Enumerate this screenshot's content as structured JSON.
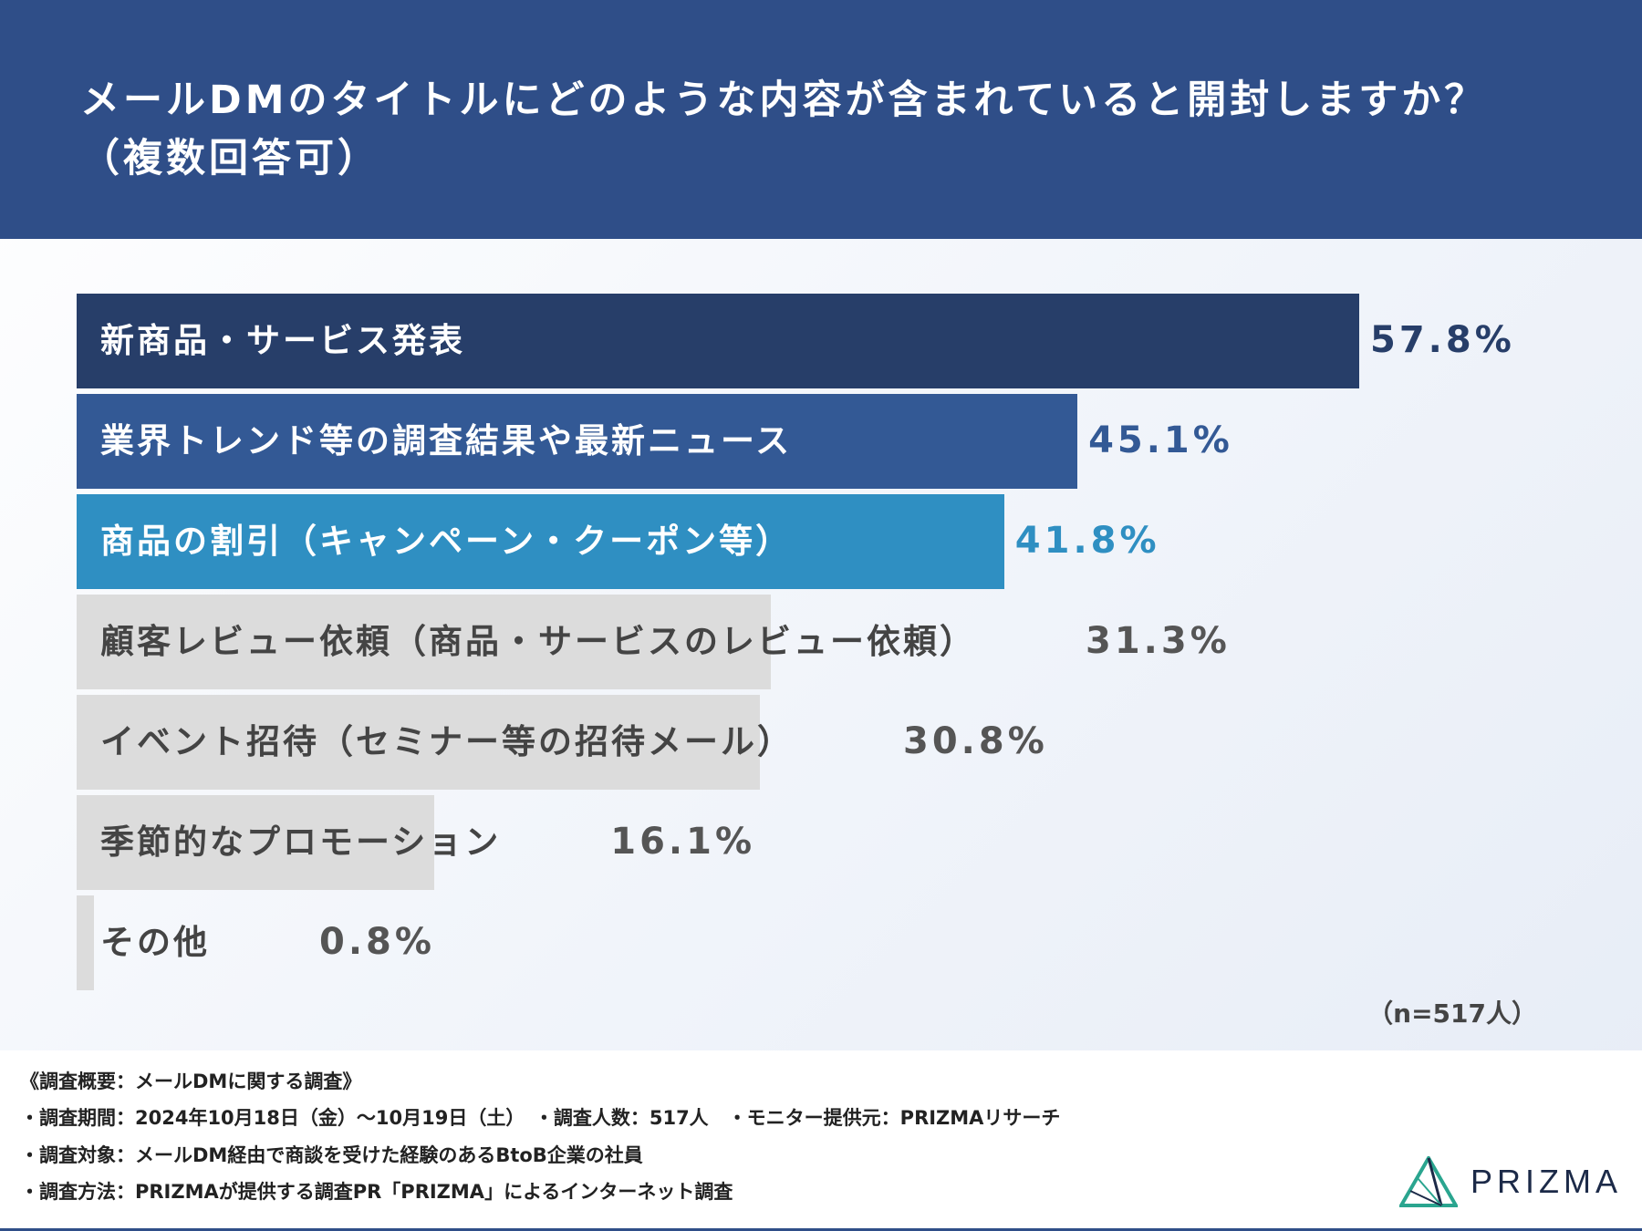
{
  "header": {
    "title_line1": "メールDMのタイトルにどのような内容が含まれていると開封しますか？",
    "title_line2": "（複数回答可）"
  },
  "chart_data": {
    "type": "bar",
    "orientation": "horizontal",
    "categories": [
      "新商品・サービス発表",
      "業界トレンド等の調査結果や最新ニュース",
      "商品の割引（キャンペーン・クーポン等）",
      "顧客レビュー依頼（商品・サービスのレビュー依頼）",
      "イベント招待（セミナー等の招待メール）",
      "季節的なプロモーション",
      "その他"
    ],
    "values": [
      57.8,
      45.1,
      41.8,
      31.3,
      30.8,
      16.1,
      0.8
    ],
    "value_labels": [
      "57.8%",
      "45.1%",
      "41.8%",
      "31.3%",
      "30.8%",
      "16.1%",
      "0.8%"
    ],
    "bar_colors": [
      "#273e69",
      "#335995",
      "#2f8fc2",
      "#dcdcdc",
      "#dcdcdc",
      "#dcdcdc",
      "#dcdcdc"
    ],
    "label_colors": [
      "#ffffff",
      "#ffffff",
      "#ffffff",
      "#444444",
      "#444444",
      "#444444",
      "#444444"
    ],
    "value_colors": [
      "#273e69",
      "#335995",
      "#2f8fc2",
      "#555555",
      "#555555",
      "#555555",
      "#555555"
    ],
    "xlim": [
      0,
      60
    ],
    "grid": false
  },
  "sample_size": "（n=517人）",
  "footer": {
    "summary": "《調査概要：メールDMに関する調査》",
    "period": "・調査期間：2024年10月18日（金）～10月19日（土）　・調査人数：517人　・モニター提供元：PRIZMAリサーチ",
    "target": "・調査対象：メールDM経由で商談を受けた経験のあるBtoB企業の社員",
    "method": "・調査方法：PRIZMAが提供する調査PR「PRIZMA」によるインターネット調査"
  },
  "logo": {
    "text": "PRIZMA",
    "icon": "prizma-logo-icon"
  }
}
